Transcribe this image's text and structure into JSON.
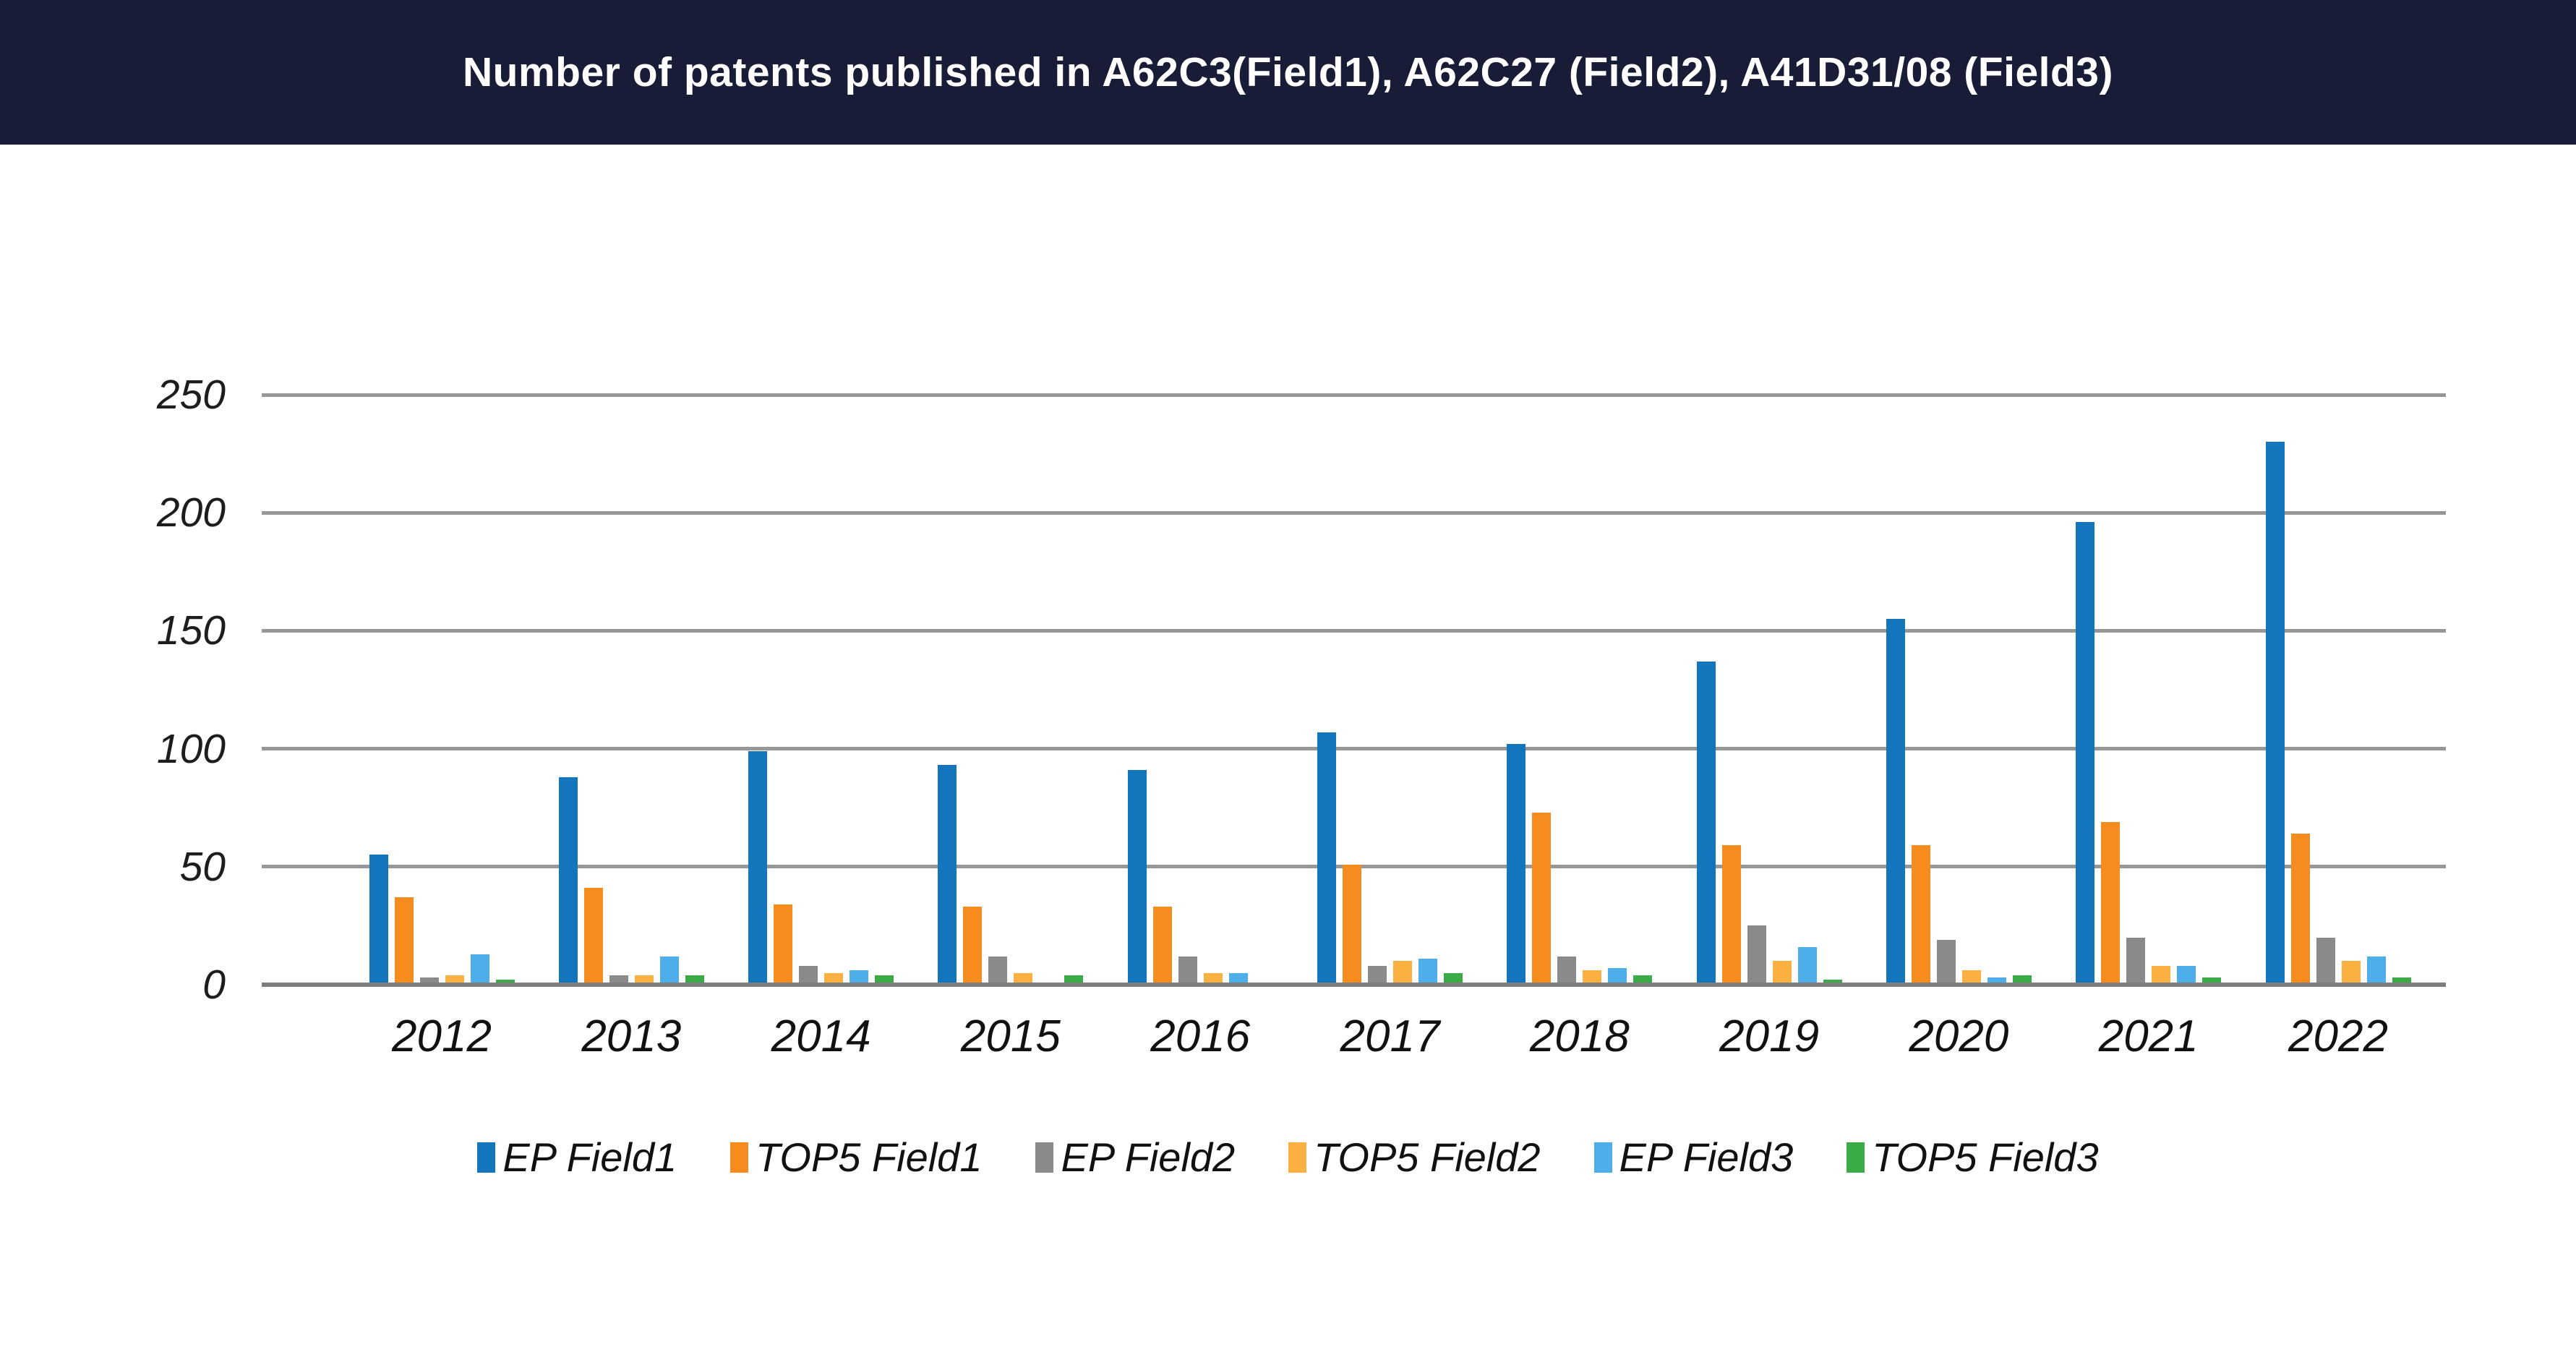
{
  "header": {
    "title": "Number of patents published in A62C3(Field1), A62C27 (Field2), A41D31/08 (Field3)"
  },
  "colors": {
    "header_background": "#181C36",
    "title_text": "#FFFFFF",
    "gridline": "#979797",
    "axis_line": "#7D7D7D",
    "tick_text": "#1D1D1D"
  },
  "chart_data": {
    "type": "bar",
    "title": "Number of patents published in A62C3(Field1), A62C27 (Field2), A41D31/08 (Field3)",
    "categories": [
      "2012",
      "2013",
      "2014",
      "2015",
      "2016",
      "2017",
      "2018",
      "2019",
      "2020",
      "2021",
      "2022"
    ],
    "series": [
      {
        "name": "EP Field1",
        "color": "#1376BC",
        "values": [
          55,
          88,
          99,
          93,
          91,
          107,
          102,
          137,
          155,
          196,
          230
        ]
      },
      {
        "name": "TOP5 Field1",
        "color": "#F78C1E",
        "values": [
          37,
          41,
          34,
          33,
          33,
          51,
          73,
          59,
          59,
          69,
          64
        ]
      },
      {
        "name": "EP Field2",
        "color": "#8A8A8A",
        "values": [
          3,
          4,
          8,
          12,
          12,
          8,
          12,
          25,
          19,
          20,
          20
        ]
      },
      {
        "name": "TOP5 Field2",
        "color": "#FBB042",
        "values": [
          4,
          4,
          5,
          5,
          5,
          10,
          6,
          10,
          6,
          8,
          10
        ]
      },
      {
        "name": "EP Field3",
        "color": "#4DAEEA",
        "values": [
          13,
          12,
          6,
          0,
          5,
          11,
          7,
          16,
          3,
          8,
          12
        ]
      },
      {
        "name": "TOP5 Field3",
        "color": "#3AAB47",
        "values": [
          2,
          4,
          4,
          4,
          1,
          5,
          4,
          2,
          4,
          3,
          3
        ]
      }
    ],
    "xlabel": "",
    "ylabel": "",
    "ylim": [
      0,
      250
    ],
    "yticks": [
      0,
      50,
      100,
      150,
      200,
      250
    ],
    "grid": true,
    "legend_position": "bottom"
  }
}
